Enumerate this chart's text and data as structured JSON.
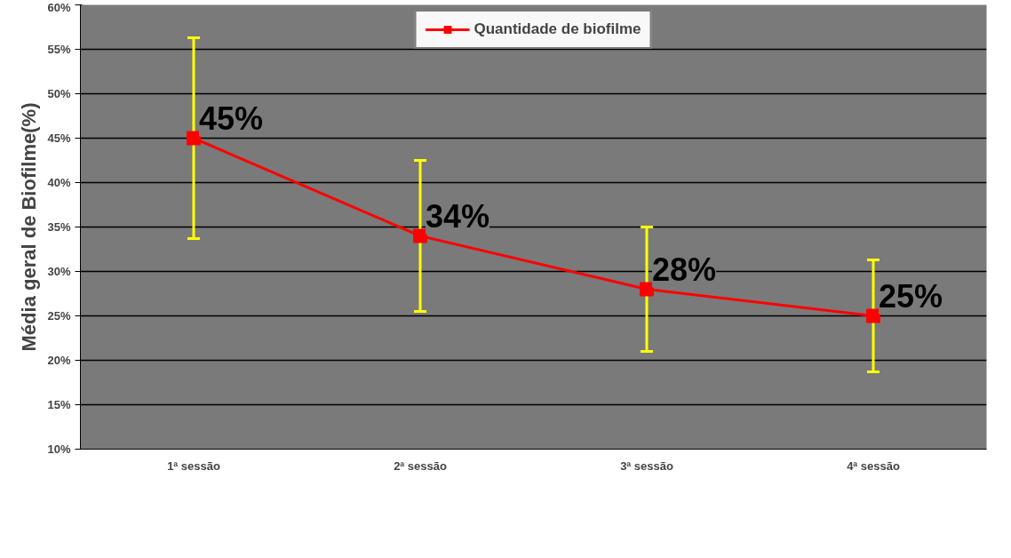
{
  "chart_data": {
    "type": "line",
    "ylabel": "Média geral de Biofilme(%)",
    "categories": [
      "1ª sessão",
      "2ª sessão",
      "3ª sessão",
      "4ª sessão"
    ],
    "series": [
      {
        "name": "Quantidade de biofilme",
        "color": "#ff0000",
        "values": [
          45,
          34,
          28,
          25
        ],
        "errors": [
          11.3,
          8.5,
          7,
          6.3
        ],
        "value_labels": [
          "45%",
          "34%",
          "28%",
          "25%"
        ]
      }
    ],
    "ylim": [
      10,
      60
    ],
    "yticks": [
      {
        "value": 10,
        "label": "10%"
      },
      {
        "value": 15,
        "label": "15%"
      },
      {
        "value": 20,
        "label": "20%"
      },
      {
        "value": 25,
        "label": "25%"
      },
      {
        "value": 30,
        "label": "30%"
      },
      {
        "value": 35,
        "label": "35%"
      },
      {
        "value": 40,
        "label": "40%"
      },
      {
        "value": 45,
        "label": "45%"
      },
      {
        "value": 50,
        "label": "50%"
      },
      {
        "value": 55,
        "label": "55%"
      },
      {
        "value": 60,
        "label": "60%"
      }
    ],
    "grid": "y",
    "legend": "top",
    "marker": "square",
    "line_style": "solid"
  }
}
